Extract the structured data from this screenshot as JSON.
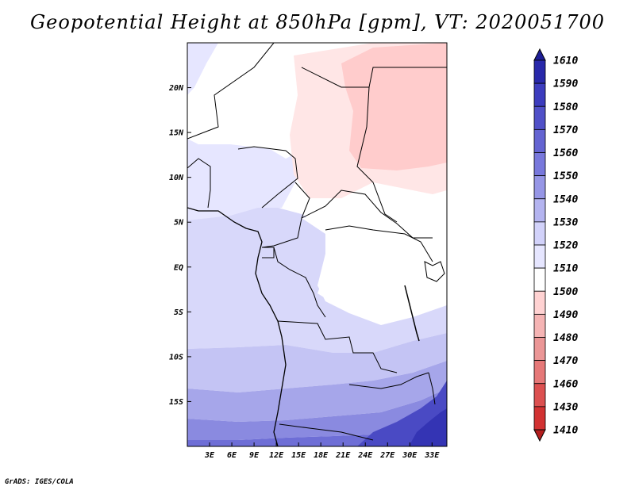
{
  "title": "Geopotential Height at 850hPa [gpm], VT: 2020051700",
  "credit": "GrADS: IGES/COLA",
  "map": {
    "projection": "lat-lon",
    "lon_range": [
      0,
      35
    ],
    "lat_range": [
      -20,
      25
    ],
    "lon_ticks": [
      {
        "value": 3,
        "label": "3E"
      },
      {
        "value": 6,
        "label": "6E"
      },
      {
        "value": 9,
        "label": "9E"
      },
      {
        "value": 12,
        "label": "12E"
      },
      {
        "value": 15,
        "label": "15E"
      },
      {
        "value": 18,
        "label": "18E"
      },
      {
        "value": 21,
        "label": "21E"
      },
      {
        "value": 24,
        "label": "24E"
      },
      {
        "value": 27,
        "label": "27E"
      },
      {
        "value": 30,
        "label": "30E"
      },
      {
        "value": 33,
        "label": "33E"
      }
    ],
    "lat_ticks": [
      {
        "value": 20,
        "label": "20N"
      },
      {
        "value": 15,
        "label": "15N"
      },
      {
        "value": 10,
        "label": "10N"
      },
      {
        "value": 5,
        "label": "5N"
      },
      {
        "value": 0,
        "label": "EQ"
      },
      {
        "value": -5,
        "label": "5S"
      },
      {
        "value": -10,
        "label": "10S"
      },
      {
        "value": -15,
        "label": "15S"
      }
    ]
  },
  "colorbar": {
    "labels": [
      "1610",
      "1590",
      "1580",
      "1570",
      "1560",
      "1550",
      "1540",
      "1530",
      "1520",
      "1510",
      "1500",
      "1490",
      "1480",
      "1470",
      "1460",
      "1430",
      "1410"
    ],
    "colors": [
      "#1e1e96",
      "#2828aa",
      "#3c3cbe",
      "#5050c8",
      "#6464d2",
      "#7878dc",
      "#9696e6",
      "#b4b4f0",
      "#d2d2fa",
      "#e6e6ff",
      "#ffffff",
      "#ffd2d2",
      "#f5b4b4",
      "#eb9696",
      "#e67878",
      "#dc5050",
      "#d23232",
      "#b41e1e"
    ]
  }
}
